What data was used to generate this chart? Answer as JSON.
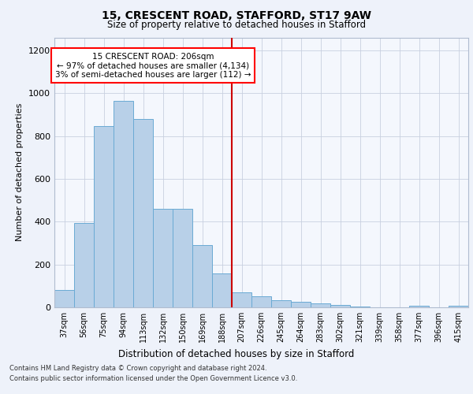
{
  "title1": "15, CRESCENT ROAD, STAFFORD, ST17 9AW",
  "title2": "Size of property relative to detached houses in Stafford",
  "xlabel": "Distribution of detached houses by size in Stafford",
  "ylabel": "Number of detached properties",
  "categories": [
    "37sqm",
    "56sqm",
    "75sqm",
    "94sqm",
    "113sqm",
    "132sqm",
    "150sqm",
    "169sqm",
    "188sqm",
    "207sqm",
    "226sqm",
    "245sqm",
    "264sqm",
    "283sqm",
    "302sqm",
    "321sqm",
    "339sqm",
    "358sqm",
    "377sqm",
    "396sqm",
    "415sqm"
  ],
  "values": [
    80,
    395,
    845,
    965,
    880,
    460,
    460,
    290,
    160,
    70,
    50,
    32,
    25,
    18,
    10,
    5,
    0,
    0,
    8,
    0,
    8
  ],
  "bar_color": "#b8d0e8",
  "bar_edge_color": "#6aaad4",
  "vertical_line_color": "#cc0000",
  "annotation_text": "15 CRESCENT ROAD: 206sqm\n← 97% of detached houses are smaller (4,134)\n3% of semi-detached houses are larger (112) →",
  "ylim": [
    0,
    1260
  ],
  "yticks": [
    0,
    200,
    400,
    600,
    800,
    1000,
    1200
  ],
  "footnote1": "Contains HM Land Registry data © Crown copyright and database right 2024.",
  "footnote2": "Contains public sector information licensed under the Open Government Licence v3.0.",
  "bg_color": "#eef2fa",
  "plot_bg_color": "#f4f7fd"
}
